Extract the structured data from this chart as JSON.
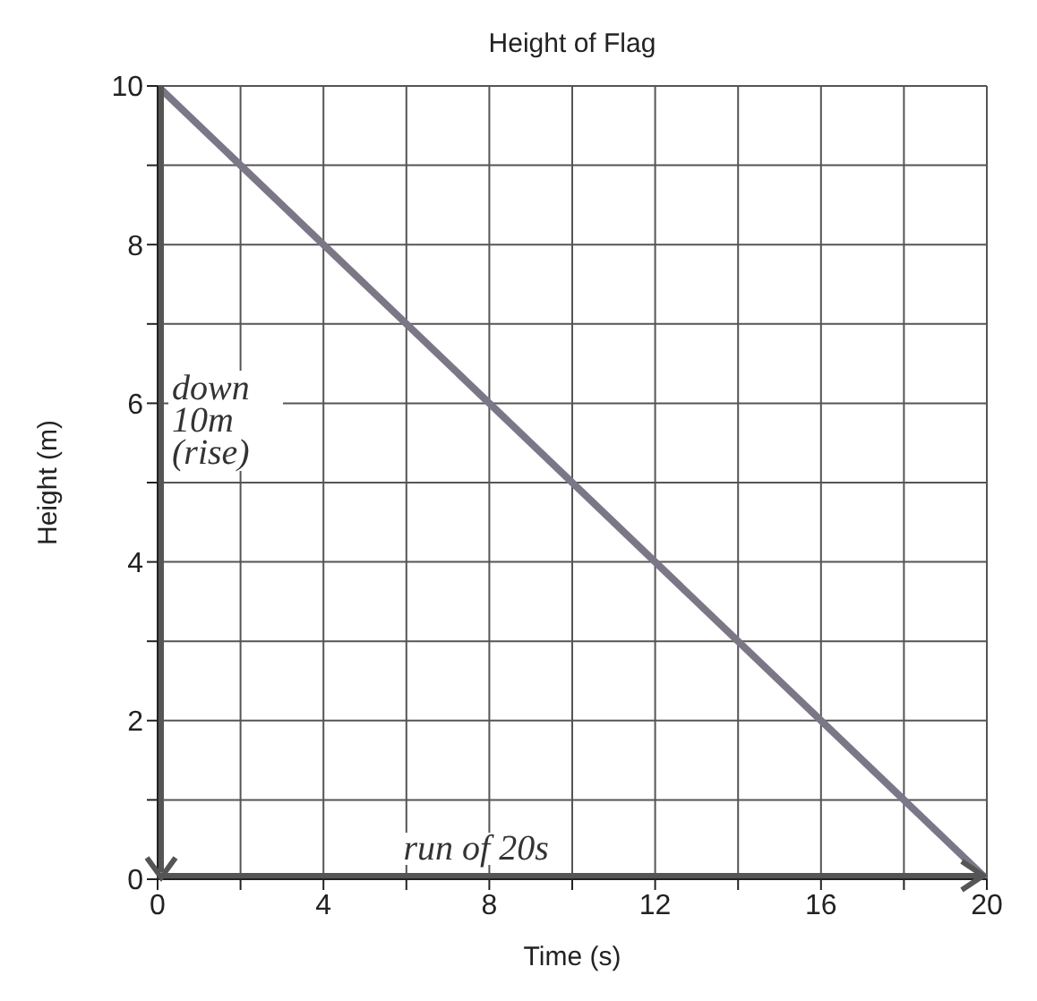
{
  "chart_data": {
    "type": "line",
    "title": "Height of Flag",
    "xlabel": "Time (s)",
    "ylabel": "Height (m)",
    "x": [
      0,
      20
    ],
    "series": [
      {
        "color": "#7b7787",
        "values": [
          10,
          0
        ]
      }
    ],
    "xlim": [
      0,
      20
    ],
    "xticks": [
      0,
      {
        "value": 2,
        "label": null
      },
      4,
      {
        "value": 6,
        "label": null
      },
      8,
      {
        "value": 10,
        "label": null
      },
      12,
      {
        "value": 14,
        "label": null
      },
      16,
      {
        "value": 18,
        "label": null
      },
      20
    ],
    "ylim": [
      0,
      10
    ],
    "yticks": [
      0,
      {
        "value": 1,
        "label": null
      },
      2,
      {
        "value": 3,
        "label": null
      },
      4,
      {
        "value": 5,
        "label": null
      },
      6,
      {
        "value": 7,
        "label": null
      },
      8,
      {
        "value": 9,
        "label": null
      },
      10
    ],
    "grid": true,
    "marker": "none",
    "line_style": "solid",
    "annotations": [
      "down 10m (rise)",
      "run of 20s"
    ]
  }
}
